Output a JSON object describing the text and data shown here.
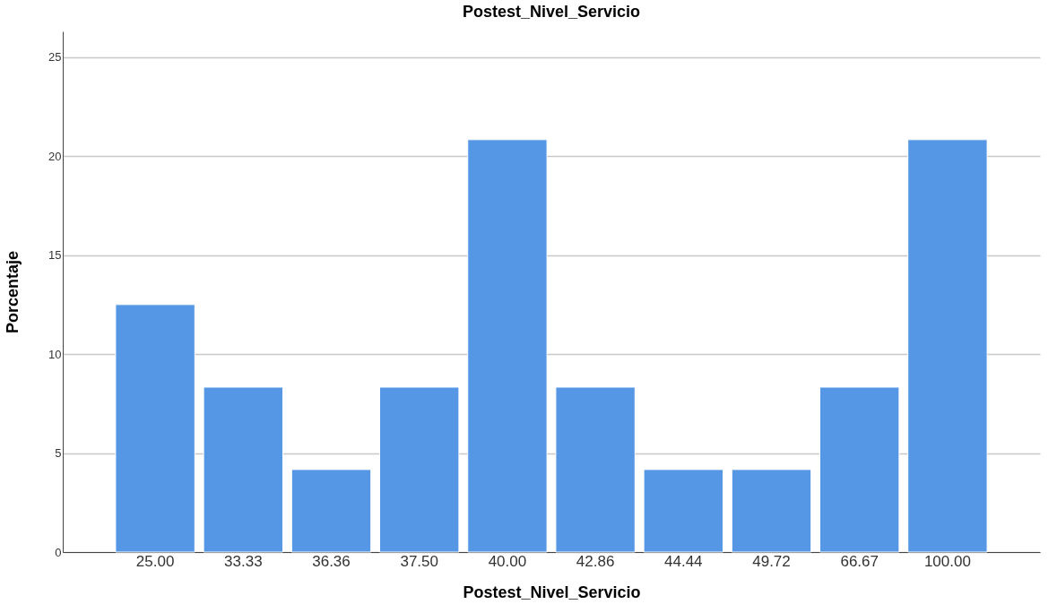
{
  "chart_data": {
    "type": "bar",
    "title": "Postest_Nivel_Servicio",
    "xlabel": "Postest_Nivel_Servicio",
    "ylabel": "Porcentaje",
    "categories": [
      "25.00",
      "33.33",
      "36.36",
      "37.50",
      "40.00",
      "42.86",
      "44.44",
      "49.72",
      "66.67",
      "100.00"
    ],
    "values": [
      12.5,
      8.33,
      4.17,
      8.33,
      20.83,
      8.33,
      4.17,
      4.17,
      8.33,
      20.83
    ],
    "color": "#5596e5",
    "ylim": [
      0,
      26.3
    ],
    "yticks": [
      0,
      5,
      10,
      15,
      20,
      25
    ],
    "grid": "y"
  }
}
